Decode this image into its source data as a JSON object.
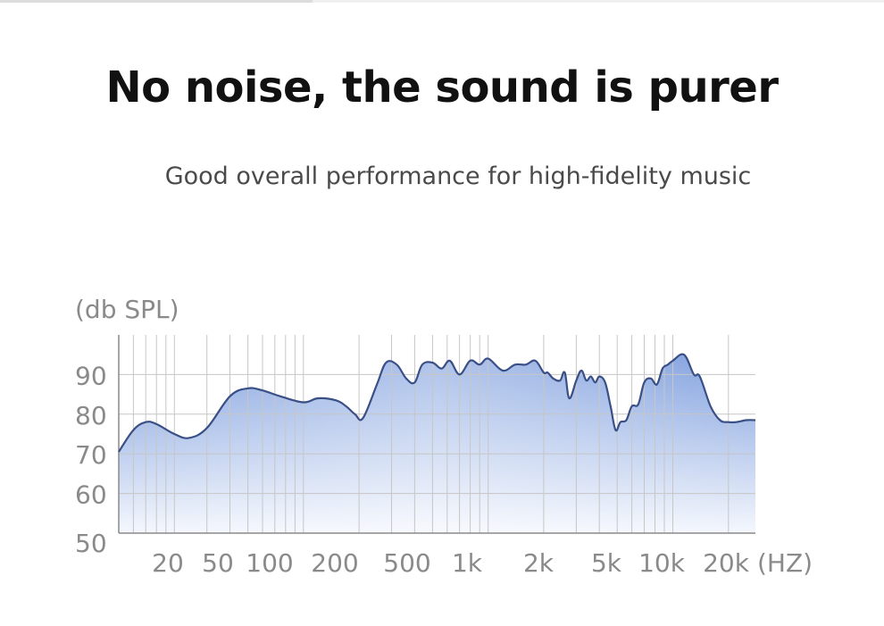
{
  "header": {
    "title": "No noise, the sound is purer",
    "subtitle": "Good overall performance for high-fidelity music"
  },
  "colors": {
    "curve": "#3a4f86",
    "fill_top": "#7f9fde",
    "fill_bottom": "#f4f7fd",
    "grid": "#c6c6c6",
    "axis": "#8a8a8a"
  },
  "chart_data": {
    "type": "area",
    "ylabel": "(db SPL)",
    "xlabel": "(HZ)",
    "ylim": [
      50,
      100
    ],
    "xscale": "log",
    "xlim": [
      10,
      28000
    ],
    "grid": true,
    "y_ticks": [
      90,
      80,
      70,
      60,
      50
    ],
    "x_ticks": [
      {
        "label": "20",
        "value": 20
      },
      {
        "label": "50",
        "value": 50
      },
      {
        "label": "100",
        "value": 100
      },
      {
        "label": "200",
        "value": 200
      },
      {
        "label": "500",
        "value": 500
      },
      {
        "label": "1k",
        "value": 1000
      },
      {
        "label": "2k",
        "value": 2000
      },
      {
        "label": "5k",
        "value": 5000
      },
      {
        "label": "10k",
        "value": 10000
      },
      {
        "label": "20k",
        "value": 20000
      }
    ],
    "series": [
      {
        "x": [
          10,
          12,
          14,
          16,
          20,
          24,
          30,
          40,
          50,
          60,
          75,
          100,
          120,
          150,
          170,
          190,
          210,
          250,
          280,
          320,
          360,
          400,
          440,
          500,
          560,
          620,
          700,
          800,
          900,
          1000,
          1200,
          1400,
          1600,
          1800,
          2000,
          2100,
          2250,
          2450,
          2600,
          2750,
          3000,
          3200,
          3400,
          3600,
          3800,
          4000,
          4300,
          4600,
          4900,
          5200,
          5600,
          6000,
          6500,
          7000,
          7600,
          8200,
          8800,
          9400,
          10000,
          11500,
          13000,
          14000,
          16000,
          18000,
          20000,
          22000,
          25000,
          28000
        ],
        "values": [
          70.5,
          76,
          78,
          77.5,
          75,
          74,
          76.5,
          84.5,
          86.5,
          86,
          84.5,
          83,
          84,
          83.5,
          82,
          80,
          79,
          87.5,
          93,
          92.5,
          89,
          88,
          92.5,
          93,
          91.5,
          93.5,
          90,
          93.5,
          92.5,
          94,
          91,
          92.5,
          92.5,
          93.5,
          90.5,
          90.5,
          89,
          88.5,
          90.5,
          84,
          88.5,
          91,
          88.5,
          89.5,
          88,
          89.5,
          88,
          82,
          76,
          78,
          78.5,
          82,
          82.5,
          88,
          89,
          87.5,
          91.5,
          92.5,
          93.5,
          95,
          90,
          89.5,
          82,
          78.5,
          78,
          78,
          78.5,
          78.5
        ]
      }
    ]
  }
}
